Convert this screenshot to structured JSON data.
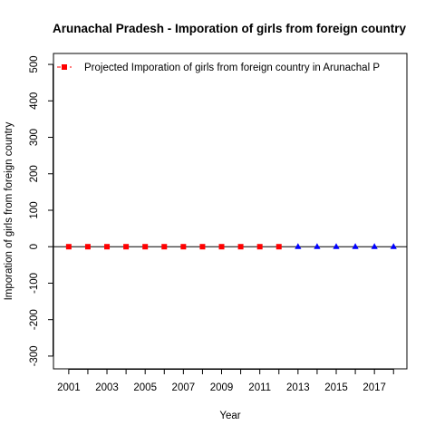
{
  "chart_data": {
    "type": "scatter",
    "title": "Arunachal Pradesh  -  Imporation of girls from foreign country",
    "xlabel": "Year",
    "ylabel": "Imporation of girls from foreign country",
    "xlim": [
      2000.2,
      2018.7
    ],
    "ylim": [
      -335,
      530
    ],
    "x_ticks": [
      2001,
      2002,
      2003,
      2004,
      2005,
      2006,
      2007,
      2008,
      2009,
      2010,
      2011,
      2012,
      2013,
      2014,
      2015,
      2016,
      2017,
      2018
    ],
    "x_tick_labels": [
      "2001",
      "2003",
      "2005",
      "2007",
      "2009",
      "2011",
      "2013",
      "2015",
      "2017"
    ],
    "y_ticks": [
      -300,
      -200,
      -100,
      0,
      100,
      200,
      300,
      400,
      500
    ],
    "y_tick_labels": [
      "-300",
      "-200",
      "-100",
      "0",
      "100",
      "200",
      "300",
      "400",
      "500"
    ],
    "grid": false,
    "zero_line": true,
    "legend": {
      "position": "top-left",
      "entries": [
        "Projected  Imporation of girls from foreign country  in  Arunachal P"
      ]
    },
    "series": [
      {
        "marker": "square",
        "color": "#ff0000",
        "x": [
          2001,
          2002,
          2003,
          2004,
          2005,
          2006,
          2007,
          2008,
          2009,
          2010,
          2011,
          2012
        ],
        "values": [
          0,
          0,
          0,
          0,
          0,
          0,
          0,
          0,
          0,
          0,
          0,
          0
        ]
      },
      {
        "marker": "triangle",
        "color": "#0000ff",
        "x": [
          2013,
          2014,
          2015,
          2016,
          2017,
          2018
        ],
        "values": [
          0,
          0,
          0,
          0,
          0,
          0
        ]
      }
    ]
  }
}
